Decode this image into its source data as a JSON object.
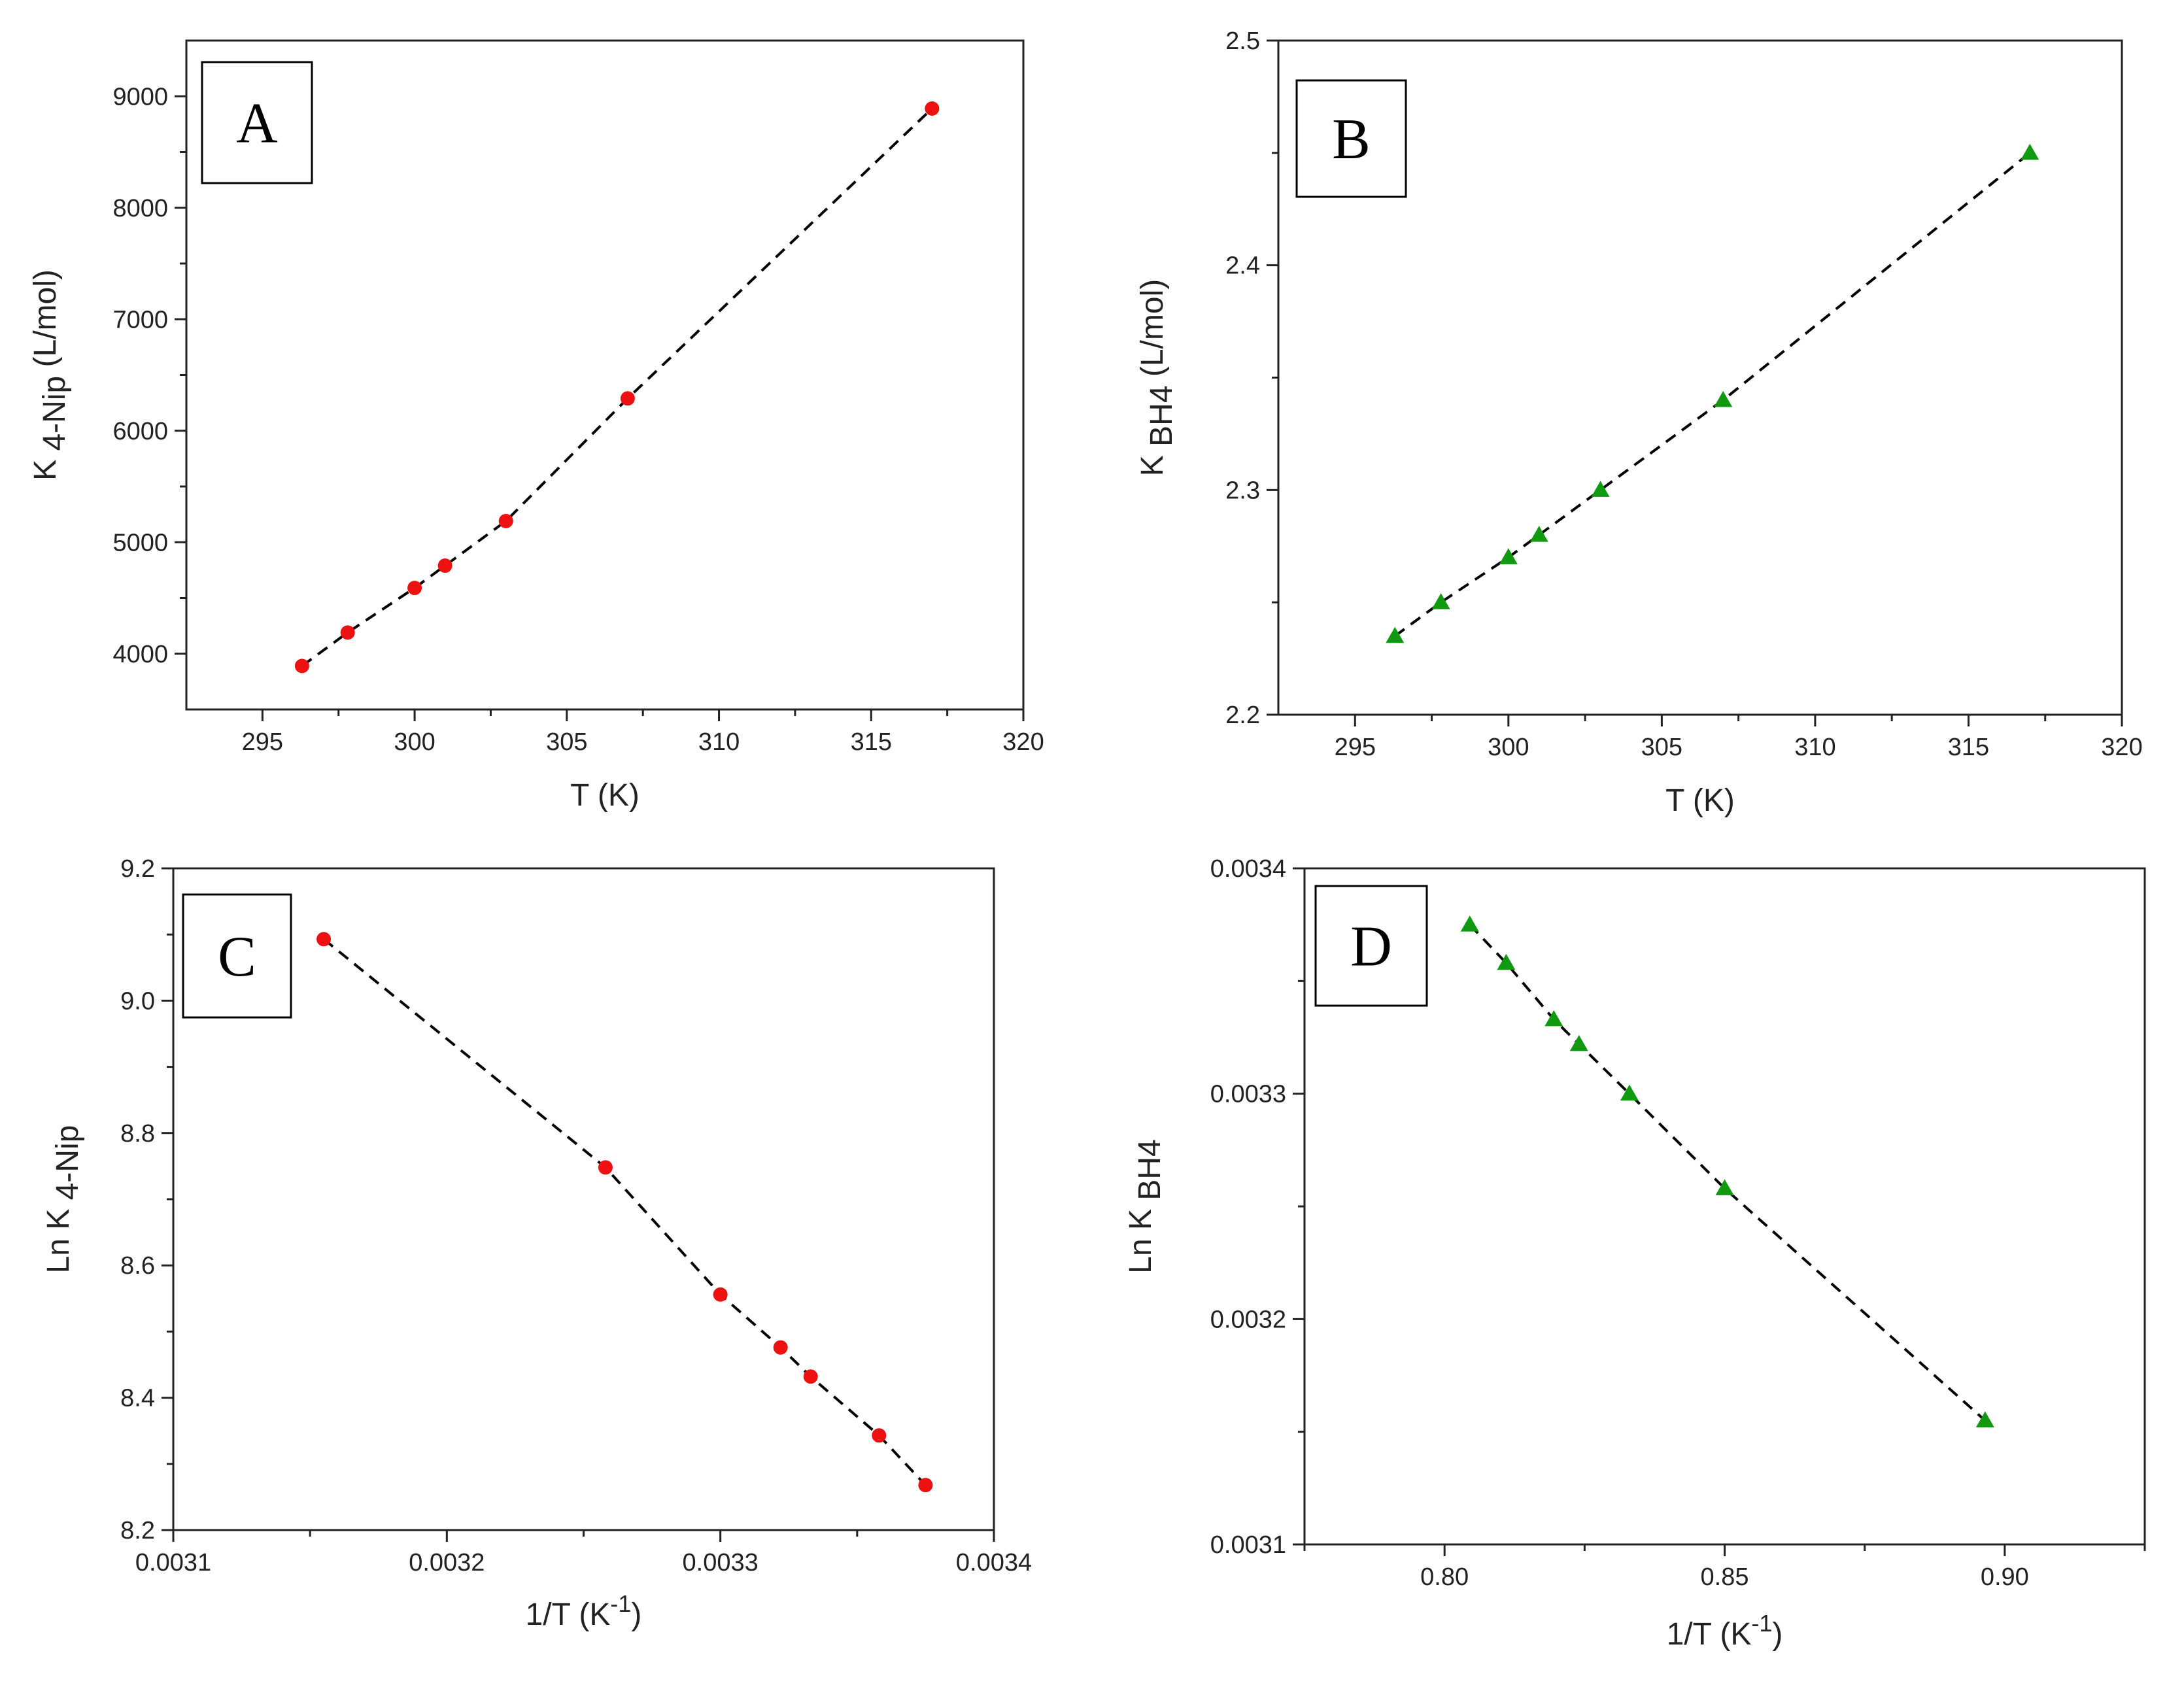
{
  "chart_data": [
    {
      "id": "A",
      "type": "scatter",
      "panel_label": "A",
      "title": "",
      "xlabel": "T (K)",
      "ylabel_main": "K",
      "ylabel_sub": "4-Nip",
      "ylabel_tail": " (L/mol)",
      "xlim": [
        292.5,
        320
      ],
      "ylim": [
        3500,
        9500
      ],
      "xticks": [
        295,
        300,
        305,
        310,
        315,
        320
      ],
      "yticks": [
        4000,
        5000,
        6000,
        7000,
        8000,
        9000
      ],
      "xtick_labels": [
        "295",
        "300",
        "305",
        "310",
        "315",
        "320"
      ],
      "ytick_labels": [
        "4000",
        "5000",
        "6000",
        "7000",
        "8000",
        "9000"
      ],
      "marker": "circle",
      "color": "#ee1111",
      "series": [
        {
          "name": "K 4-Nip",
          "x": [
            296.3,
            297.8,
            300.0,
            301.0,
            303.0,
            307.0,
            317.0
          ],
          "y": [
            3890,
            4190,
            4590,
            4790,
            5190,
            6290,
            8890
          ]
        }
      ]
    },
    {
      "id": "B",
      "type": "scatter",
      "panel_label": "B",
      "title": "",
      "xlabel": "T (K)",
      "ylabel_main": "K",
      "ylabel_sub": "BH4",
      "ylabel_tail": " (L/mol)",
      "xlim": [
        292.5,
        320
      ],
      "ylim": [
        2.2,
        2.5
      ],
      "xticks": [
        295,
        300,
        305,
        310,
        315,
        320
      ],
      "yticks": [
        2.2,
        2.3,
        2.4,
        2.5
      ],
      "xtick_labels": [
        "295",
        "300",
        "305",
        "310",
        "315",
        "320"
      ],
      "ytick_labels": [
        "2.2",
        "2.3",
        "2.4",
        "2.5"
      ],
      "marker": "triangle",
      "color": "#119911",
      "series": [
        {
          "name": "K BH4",
          "x": [
            296.3,
            297.8,
            300.0,
            301.0,
            303.0,
            307.0,
            317.0
          ],
          "y": [
            2.235,
            2.25,
            2.27,
            2.28,
            2.3,
            2.34,
            2.45
          ]
        }
      ]
    },
    {
      "id": "C",
      "type": "scatter",
      "panel_label": "C",
      "title": "",
      "xlabel": "1/T (K",
      "xlabel_sup": "-1",
      "xlabel_tail": ")",
      "ylabel_main": "Ln K",
      "ylabel_sub": "4-Nip",
      "ylabel_tail": "",
      "xlim": [
        0.0031,
        0.0034
      ],
      "ylim": [
        8.2,
        9.2
      ],
      "xticks": [
        0.0031,
        0.0032,
        0.0033,
        0.0034
      ],
      "yticks": [
        8.2,
        8.4,
        8.6,
        8.8,
        9.0,
        9.2
      ],
      "xtick_labels": [
        "0.0031",
        "0.0032",
        "0.0033",
        "0.0034"
      ],
      "ytick_labels": [
        "8.2",
        "8.4",
        "8.6",
        "8.8",
        "9.0",
        "9.2"
      ],
      "marker": "circle",
      "color": "#ee1111",
      "series": [
        {
          "name": "Ln K 4-Nip",
          "x": [
            0.003155,
            0.003258,
            0.0033,
            0.003322,
            0.003333,
            0.003358,
            0.003375
          ],
          "y": [
            9.093,
            8.748,
            8.556,
            8.476,
            8.432,
            8.343,
            8.268
          ]
        }
      ]
    },
    {
      "id": "D",
      "type": "scatter",
      "panel_label": "D",
      "title": "",
      "xlabel": "1/T (K",
      "xlabel_sup": "-1",
      "xlabel_tail": ")",
      "ylabel_main": "Ln K",
      "ylabel_sub": "BH4",
      "ylabel_tail": "",
      "xlim": [
        0.775,
        0.925
      ],
      "ylim": [
        0.0031,
        0.0034
      ],
      "xticks": [
        0.8,
        0.85,
        0.9
      ],
      "yticks": [
        0.0031,
        0.0032,
        0.0033,
        0.0034
      ],
      "xtick_labels": [
        "0.80",
        "0.85",
        "0.90"
      ],
      "ytick_labels": [
        "0.0031",
        "0.0032",
        "0.0033",
        "0.0034"
      ],
      "marker": "triangle",
      "color": "#119911",
      "series": [
        {
          "name": "Ln K BH4",
          "x": [
            0.8045,
            0.811,
            0.8195,
            0.824,
            0.833,
            0.85,
            0.8965
          ],
          "y": [
            0.003375,
            0.003358,
            0.003333,
            0.003322,
            0.0033,
            0.003258,
            0.003155
          ]
        }
      ]
    }
  ]
}
